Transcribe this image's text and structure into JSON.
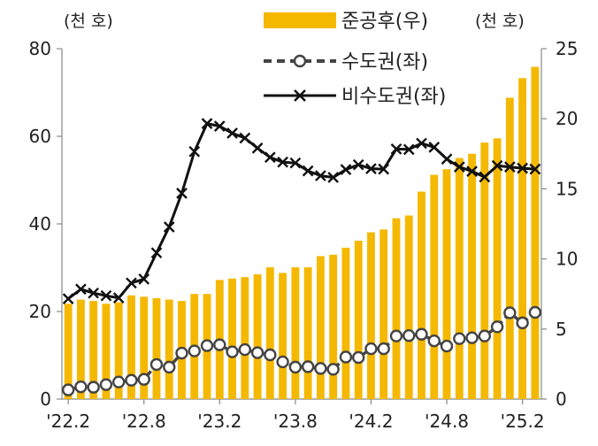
{
  "chart_data": {
    "type": "bar+line",
    "left_unit": "(천 호)",
    "right_unit": "(천 호)",
    "left_ylim": [
      0,
      80
    ],
    "left_yticks": [
      "0",
      "20",
      "40",
      "60",
      "80"
    ],
    "right_ylim": [
      0,
      25
    ],
    "right_yticks": [
      "0",
      "5",
      "10",
      "15",
      "20",
      "25"
    ],
    "xtick_labels": [
      "'22.2",
      "'22.8",
      "'23.2",
      "'23.8",
      "'24.2",
      "'24.8",
      "'25.2"
    ],
    "xtick_index": [
      0,
      6,
      12,
      18,
      24,
      30,
      36
    ],
    "x": [
      "'22.1",
      "'22.2",
      "'22.3",
      "'22.4",
      "'22.5",
      "'22.6",
      "'22.7",
      "'22.8",
      "'22.9",
      "'22.10",
      "'22.11",
      "'22.12",
      "'23.1",
      "'23.2",
      "'23.3",
      "'23.4",
      "'23.5",
      "'23.6",
      "'23.7",
      "'23.8",
      "'23.9",
      "'23.10",
      "'23.11",
      "'23.12",
      "'24.1",
      "'24.2",
      "'24.3",
      "'24.4",
      "'24.5",
      "'24.6",
      "'24.7",
      "'24.8",
      "'24.9",
      "'24.10",
      "'24.11",
      "'24.12",
      "'25.1",
      "'25.2"
    ],
    "legend_position": "top",
    "series": [
      {
        "name": "준공후(우)",
        "kind": "bar",
        "axis": "right",
        "color": "#F5B800",
        "values": [
          6.8,
          7.1,
          7.0,
          6.8,
          6.9,
          7.4,
          7.3,
          7.2,
          7.1,
          7.0,
          7.5,
          7.5,
          8.5,
          8.6,
          8.7,
          8.9,
          9.4,
          9.0,
          9.4,
          9.4,
          10.2,
          10.3,
          10.8,
          11.3,
          11.9,
          12.1,
          12.9,
          13.1,
          14.8,
          16.0,
          16.4,
          17.2,
          17.5,
          18.3,
          18.6,
          21.5,
          22.9,
          23.7
        ]
      },
      {
        "name": "수도권(좌)",
        "kind": "line",
        "axis": "left",
        "color": "#444444",
        "marker": "circle",
        "dashed": true,
        "values": [
          2.1,
          2.8,
          2.7,
          3.3,
          3.9,
          4.3,
          4.5,
          7.9,
          7.3,
          10.5,
          11.0,
          12.2,
          12.4,
          10.8,
          11.3,
          10.6,
          10.1,
          8.5,
          7.3,
          7.4,
          7.0,
          6.8,
          9.6,
          9.5,
          11.5,
          11.5,
          14.4,
          14.5,
          14.8,
          13.3,
          12.1,
          13.8,
          14.0,
          14.4,
          16.5,
          19.7,
          17.4,
          19.8
        ]
      },
      {
        "name": "비수도권(좌)",
        "kind": "line",
        "axis": "left",
        "color": "#111111",
        "marker": "x",
        "dashed": false,
        "values": [
          22.9,
          25.1,
          24.2,
          23.6,
          23.1,
          26.5,
          27.4,
          33.4,
          39.3,
          47.0,
          56.5,
          62.9,
          62.3,
          60.7,
          59.6,
          57.3,
          55.2,
          54.1,
          53.9,
          52.1,
          51.0,
          50.6,
          52.4,
          53.5,
          52.6,
          52.5,
          57.1,
          57.0,
          58.4,
          57.5,
          54.8,
          53.0,
          52.0,
          50.7,
          53.3,
          53.0,
          52.7,
          52.5
        ]
      }
    ]
  }
}
